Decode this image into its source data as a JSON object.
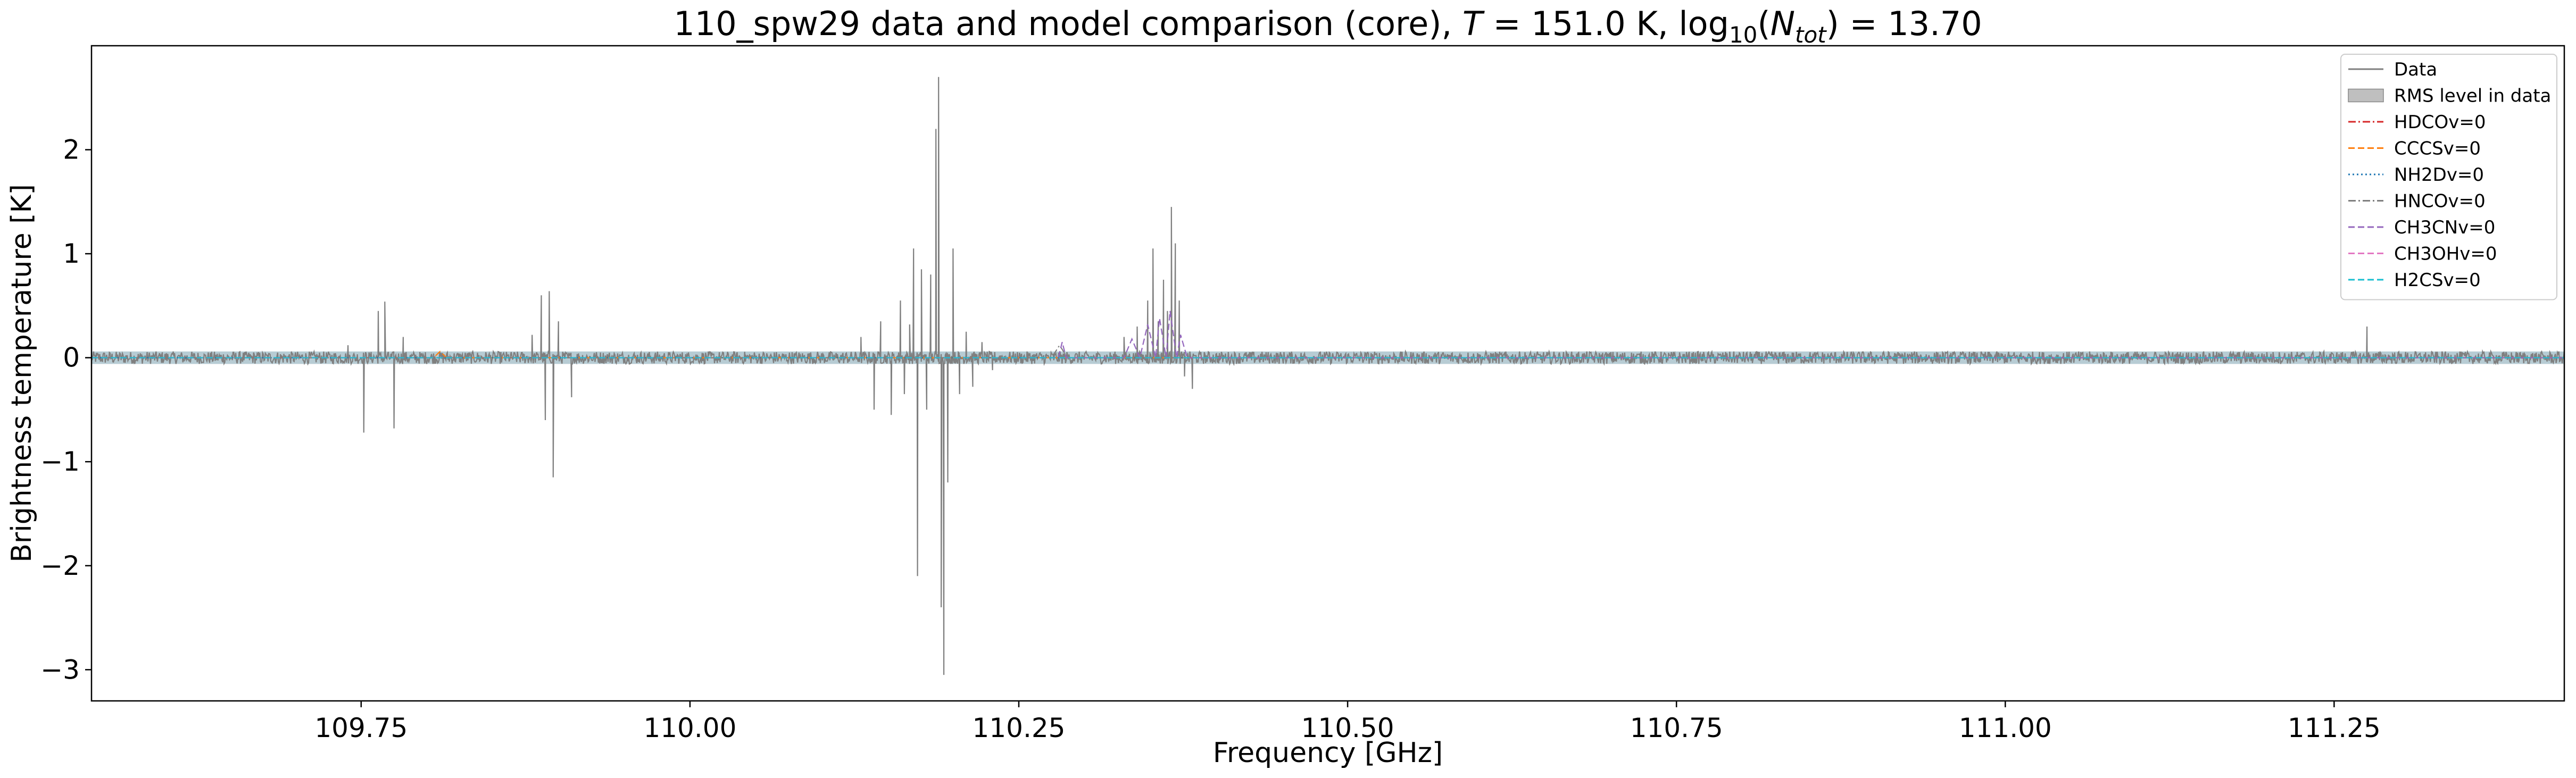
{
  "chart_data": {
    "type": "line",
    "title": {
      "prefix": "110_spw29 data and model comparison (core), ",
      "t_symbol": "T",
      "t_value": " = 151.0 K, log",
      "log_sub": "10",
      "n_open": "(",
      "n_symbol": "N",
      "n_sub": "tot",
      "n_close": ")",
      "n_value": " = 13.70"
    },
    "xlabel": "Frequency [GHz]",
    "ylabel": "Brightness temperature [K]",
    "xlim": [
      109.545,
      111.425
    ],
    "ylim": [
      -3.3,
      3.0
    ],
    "xticks": [
      109.75,
      110.0,
      110.25,
      110.5,
      110.75,
      111.0,
      111.25
    ],
    "xtick_labels": [
      "109.75",
      "110.00",
      "110.25",
      "110.50",
      "110.75",
      "111.00",
      "111.25"
    ],
    "yticks": [
      -3,
      -2,
      -1,
      0,
      1,
      2
    ],
    "ytick_labels": [
      "−3",
      "−2",
      "−1",
      "0",
      "1",
      "2"
    ],
    "grid": false,
    "legend_position": "top-right",
    "rms_level": 0.06,
    "series": [
      {
        "name": "Data",
        "style": "solid",
        "color": "#7f7f7f",
        "noise_amplitude": 0.06,
        "features": [
          {
            "x": 109.74,
            "y": 0.12
          },
          {
            "x": 109.752,
            "y": -0.72
          },
          {
            "x": 109.763,
            "y": 0.45
          },
          {
            "x": 109.768,
            "y": 0.54
          },
          {
            "x": 109.775,
            "y": -0.68
          },
          {
            "x": 109.782,
            "y": 0.2
          },
          {
            "x": 109.88,
            "y": 0.22
          },
          {
            "x": 109.887,
            "y": 0.6
          },
          {
            "x": 109.89,
            "y": -0.6
          },
          {
            "x": 109.893,
            "y": 0.64
          },
          {
            "x": 109.896,
            "y": -1.15
          },
          {
            "x": 109.9,
            "y": 0.35
          },
          {
            "x": 109.91,
            "y": -0.38
          },
          {
            "x": 110.13,
            "y": 0.2
          },
          {
            "x": 110.14,
            "y": -0.5
          },
          {
            "x": 110.145,
            "y": 0.35
          },
          {
            "x": 110.153,
            "y": -0.55
          },
          {
            "x": 110.16,
            "y": 0.55
          },
          {
            "x": 110.163,
            "y": -0.35
          },
          {
            "x": 110.167,
            "y": 0.32
          },
          {
            "x": 110.17,
            "y": 1.05
          },
          {
            "x": 110.173,
            "y": -2.1
          },
          {
            "x": 110.176,
            "y": 0.85
          },
          {
            "x": 110.18,
            "y": -0.5
          },
          {
            "x": 110.183,
            "y": 0.8
          },
          {
            "x": 110.187,
            "y": 2.2
          },
          {
            "x": 110.189,
            "y": 2.7
          },
          {
            "x": 110.191,
            "y": -2.4
          },
          {
            "x": 110.193,
            "y": -3.05
          },
          {
            "x": 110.196,
            "y": -1.2
          },
          {
            "x": 110.2,
            "y": 1.05
          },
          {
            "x": 110.205,
            "y": -0.35
          },
          {
            "x": 110.21,
            "y": 0.25
          },
          {
            "x": 110.215,
            "y": -0.28
          },
          {
            "x": 110.222,
            "y": 0.15
          },
          {
            "x": 110.23,
            "y": -0.12
          },
          {
            "x": 110.33,
            "y": 0.2
          },
          {
            "x": 110.34,
            "y": 0.3
          },
          {
            "x": 110.348,
            "y": 0.55
          },
          {
            "x": 110.352,
            "y": 1.05
          },
          {
            "x": 110.356,
            "y": 0.35
          },
          {
            "x": 110.36,
            "y": 0.75
          },
          {
            "x": 110.363,
            "y": 0.45
          },
          {
            "x": 110.366,
            "y": 1.45
          },
          {
            "x": 110.369,
            "y": 1.1
          },
          {
            "x": 110.372,
            "y": 0.55
          },
          {
            "x": 110.376,
            "y": -0.18
          },
          {
            "x": 110.382,
            "y": -0.3
          },
          {
            "x": 111.275,
            "y": 0.3
          }
        ]
      },
      {
        "name": "HDCOv=0",
        "style": "dashdot",
        "color": "#d62728",
        "points": [
          [
            109.545,
            0.0
          ],
          [
            111.425,
            0.0
          ]
        ]
      },
      {
        "name": "CCCSv=0",
        "style": "dashed",
        "color": "#ff7f0e",
        "points": [
          [
            109.545,
            0.0
          ],
          [
            109.805,
            0.0
          ],
          [
            109.81,
            0.06
          ],
          [
            109.815,
            0.0
          ],
          [
            111.425,
            0.0
          ]
        ]
      },
      {
        "name": "NH2Dv=0",
        "style": "dotted",
        "color": "#1f77b4",
        "points": [
          [
            109.545,
            0.0
          ],
          [
            111.425,
            0.0
          ]
        ]
      },
      {
        "name": "HNCOv=0",
        "style": "dashdot",
        "color": "#7f7f7f",
        "points": [
          [
            109.545,
            0.0
          ],
          [
            110.275,
            0.0
          ],
          [
            110.281,
            0.12
          ],
          [
            110.287,
            0.0
          ],
          [
            111.425,
            0.0
          ]
        ]
      },
      {
        "name": "CH3CNv=0",
        "style": "dashed",
        "color": "#9467bd",
        "points": [
          [
            109.545,
            0.0
          ],
          [
            110.28,
            0.0
          ],
          [
            110.283,
            0.15
          ],
          [
            110.286,
            0.0
          ],
          [
            110.33,
            0.0
          ],
          [
            110.336,
            0.18
          ],
          [
            110.342,
            0.0
          ],
          [
            110.348,
            0.32
          ],
          [
            110.354,
            0.0
          ],
          [
            110.357,
            0.38
          ],
          [
            110.362,
            0.0
          ],
          [
            110.365,
            0.45
          ],
          [
            110.37,
            0.0
          ],
          [
            110.373,
            0.22
          ],
          [
            110.378,
            0.0
          ],
          [
            111.425,
            0.0
          ]
        ]
      },
      {
        "name": "CH3OHv=0",
        "style": "dashed",
        "color": "#e377c2",
        "points": [
          [
            109.545,
            0.0
          ],
          [
            111.425,
            0.0
          ]
        ]
      },
      {
        "name": "H2CSv=0",
        "style": "dashed",
        "color": "#17becf",
        "points": [
          [
            109.545,
            0.0
          ],
          [
            111.425,
            0.0
          ]
        ]
      }
    ],
    "rms_band_label": "RMS level in data",
    "rms_band_color": "#bfbfbf",
    "legend_items": [
      {
        "label": "Data",
        "kind": "line",
        "color": "#7f7f7f",
        "style": "solid"
      },
      {
        "label": "RMS level in data",
        "kind": "patch",
        "color": "#bfbfbf",
        "style": "solid"
      },
      {
        "label": "HDCOv=0",
        "kind": "line",
        "color": "#d62728",
        "style": "dashdot"
      },
      {
        "label": "CCCSv=0",
        "kind": "line",
        "color": "#ff7f0e",
        "style": "dashed"
      },
      {
        "label": "NH2Dv=0",
        "kind": "line",
        "color": "#1f77b4",
        "style": "dotted"
      },
      {
        "label": "HNCOv=0",
        "kind": "line",
        "color": "#7f7f7f",
        "style": "dashdot"
      },
      {
        "label": "CH3CNv=0",
        "kind": "line",
        "color": "#9467bd",
        "style": "dashed"
      },
      {
        "label": "CH3OHv=0",
        "kind": "line",
        "color": "#e377c2",
        "style": "dashed"
      },
      {
        "label": "H2CSv=0",
        "kind": "line",
        "color": "#17becf",
        "style": "dashed"
      }
    ]
  }
}
